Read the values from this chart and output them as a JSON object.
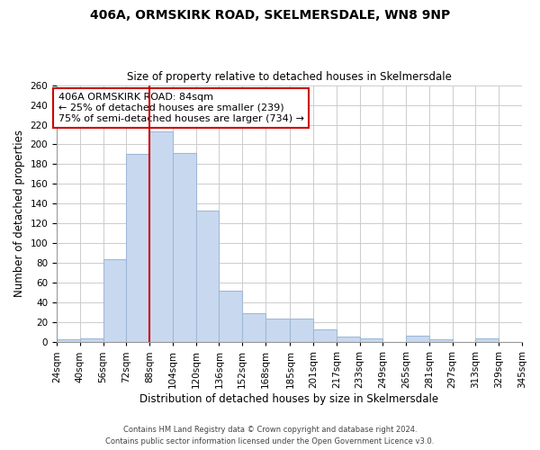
{
  "title": "406A, ORMSKIRK ROAD, SKELMERSDALE, WN8 9NP",
  "subtitle": "Size of property relative to detached houses in Skelmersdale",
  "xlabel": "Distribution of detached houses by size in Skelmersdale",
  "ylabel": "Number of detached properties",
  "footer_line1": "Contains HM Land Registry data © Crown copyright and database right 2024.",
  "footer_line2": "Contains public sector information licensed under the Open Government Licence v3.0.",
  "annotation_title": "406A ORMSKIRK ROAD: 84sqm",
  "annotation_line1": "← 25% of detached houses are smaller (239)",
  "annotation_line2": "75% of semi-detached houses are larger (734) →",
  "bar_color": "#c8d9ef",
  "bar_edge_color": "#a0b8d8",
  "vline_color": "#cc0000",
  "bins": [
    24,
    40,
    56,
    72,
    88,
    104,
    120,
    136,
    152,
    168,
    185,
    201,
    217,
    233,
    249,
    265,
    281,
    297,
    313,
    329,
    345
  ],
  "bin_labels": [
    "24sqm",
    "40sqm",
    "56sqm",
    "72sqm",
    "88sqm",
    "104sqm",
    "120sqm",
    "136sqm",
    "152sqm",
    "168sqm",
    "185sqm",
    "201sqm",
    "217sqm",
    "233sqm",
    "249sqm",
    "265sqm",
    "281sqm",
    "297sqm",
    "313sqm",
    "329sqm",
    "345sqm"
  ],
  "heights": [
    3,
    4,
    84,
    190,
    213,
    191,
    133,
    52,
    29,
    24,
    24,
    13,
    6,
    4,
    0,
    7,
    3,
    0,
    4,
    0
  ],
  "ylim": [
    0,
    260
  ],
  "yticks": [
    0,
    20,
    40,
    60,
    80,
    100,
    120,
    140,
    160,
    180,
    200,
    220,
    240,
    260
  ],
  "background_color": "#ffffff",
  "grid_color": "#cccccc"
}
